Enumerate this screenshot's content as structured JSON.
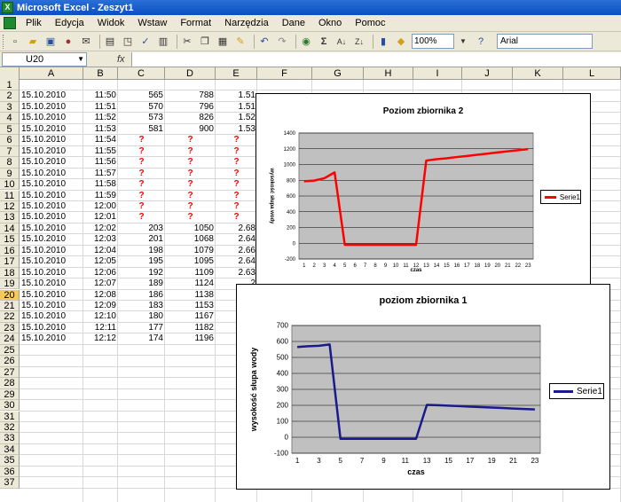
{
  "window": {
    "title": "Microsoft Excel - Zeszyt1"
  },
  "menu": [
    "Plik",
    "Edycja",
    "Widok",
    "Wstaw",
    "Format",
    "Narzędzia",
    "Dane",
    "Okno",
    "Pomoc"
  ],
  "toolbar": {
    "zoom": "100%",
    "font": "Arial",
    "icons": [
      "new-icon",
      "open-icon",
      "save-icon",
      "permission-icon",
      "email-icon",
      "print-icon",
      "print-preview-icon",
      "spelling-icon",
      "research-icon",
      "cut-icon",
      "copy-icon",
      "paste-icon",
      "format-painter-icon",
      "undo-icon",
      "redo-icon",
      "hyperlink-icon",
      "autosum-icon",
      "sort-asc-icon",
      "sort-desc-icon",
      "chart-wizard-icon",
      "drawing-icon",
      "help-icon"
    ]
  },
  "formula_bar": {
    "name_box": "U20",
    "fx": "fx"
  },
  "grid": {
    "columns": [
      "A",
      "B",
      "C",
      "D",
      "E",
      "F",
      "G",
      "H",
      "I",
      "J",
      "K",
      "L"
    ],
    "rows": [
      "1",
      "2",
      "3",
      "4",
      "5",
      "6",
      "7",
      "8",
      "9",
      "10",
      "11",
      "12",
      "13",
      "14",
      "15",
      "16",
      "17",
      "18",
      "19",
      "20",
      "21",
      "22",
      "23",
      "24",
      "25",
      "26",
      "27",
      "28",
      "29",
      "30",
      "31",
      "32",
      "33",
      "34",
      "35",
      "36",
      "37"
    ],
    "selected_row": "20",
    "data": [
      [
        "15.10.2010",
        "11:50",
        "565",
        "788",
        "1.51"
      ],
      [
        "15.10.2010",
        "11:51",
        "570",
        "796",
        "1.51"
      ],
      [
        "15.10.2010",
        "11:52",
        "573",
        "826",
        "1.52"
      ],
      [
        "15.10.2010",
        "11:53",
        "581",
        "900",
        "1.53"
      ],
      [
        "15.10.2010",
        "11:54",
        "?",
        "?",
        "?"
      ],
      [
        "15.10.2010",
        "11:55",
        "?",
        "?",
        "?"
      ],
      [
        "15.10.2010",
        "11:56",
        "?",
        "?",
        "?"
      ],
      [
        "15.10.2010",
        "11:57",
        "?",
        "?",
        "?"
      ],
      [
        "15.10.2010",
        "11:58",
        "?",
        "?",
        "?"
      ],
      [
        "15.10.2010",
        "11:59",
        "?",
        "?",
        "?"
      ],
      [
        "15.10.2010",
        "12:00",
        "?",
        "?",
        "?"
      ],
      [
        "15.10.2010",
        "12:01",
        "?",
        "?",
        "?"
      ],
      [
        "15.10.2010",
        "12:02",
        "203",
        "1050",
        "2.68"
      ],
      [
        "15.10.2010",
        "12:03",
        "201",
        "1068",
        "2.64"
      ],
      [
        "15.10.2010",
        "12:04",
        "198",
        "1079",
        "2.66"
      ],
      [
        "15.10.2010",
        "12:05",
        "195",
        "1095",
        "2.64"
      ],
      [
        "15.10.2010",
        "12:06",
        "192",
        "1109",
        "2.63"
      ],
      [
        "15.10.2010",
        "12:07",
        "189",
        "1124",
        "2"
      ],
      [
        "15.10.2010",
        "12:08",
        "186",
        "1138",
        "2"
      ],
      [
        "15.10.2010",
        "12:09",
        "183",
        "1153",
        "2"
      ],
      [
        "15.10.2010",
        "12:10",
        "180",
        "1167",
        "2"
      ],
      [
        "15.10.2010",
        "12:11",
        "177",
        "1182",
        "2"
      ],
      [
        "15.10.2010",
        "12:12",
        "174",
        "1196",
        "2"
      ]
    ]
  },
  "chart_data": [
    {
      "type": "line",
      "title": "Poziom zbiornika 2",
      "xlabel": "czas",
      "ylabel": "wysokość słupa wody",
      "ylim": [
        -200,
        1400
      ],
      "yticks": [
        -200,
        0,
        200,
        400,
        600,
        800,
        1000,
        1200,
        1400
      ],
      "x": [
        1,
        2,
        3,
        4,
        5,
        6,
        7,
        8,
        9,
        10,
        11,
        12,
        13,
        14,
        15,
        16,
        17,
        18,
        19,
        20,
        21,
        22,
        23
      ],
      "grid": true,
      "legend": "right",
      "series": [
        {
          "name": "Serie1",
          "color": "#ff0000",
          "values": [
            788,
            796,
            826,
            900,
            -20,
            -20,
            -20,
            -20,
            -20,
            -20,
            -20,
            -20,
            1050,
            1068,
            1079,
            1095,
            1109,
            1124,
            1138,
            1153,
            1167,
            1182,
            1196
          ]
        }
      ]
    },
    {
      "type": "line",
      "title": "poziom zbiornika 1",
      "xlabel": "czas",
      "ylabel": "wysokość słupa wody",
      "ylim": [
        -100,
        700
      ],
      "yticks": [
        -100,
        0,
        100,
        200,
        300,
        400,
        500,
        600,
        700
      ],
      "x": [
        1,
        2,
        3,
        4,
        5,
        6,
        7,
        8,
        9,
        10,
        11,
        12,
        13,
        14,
        15,
        16,
        17,
        18,
        19,
        20,
        21,
        22,
        23
      ],
      "xticks": [
        1,
        3,
        5,
        7,
        9,
        11,
        13,
        15,
        17,
        19,
        21,
        23
      ],
      "grid": true,
      "legend": "right",
      "series": [
        {
          "name": "Serie1",
          "color": "#1a1a8c",
          "values": [
            565,
            570,
            573,
            581,
            -10,
            -10,
            -10,
            -10,
            -10,
            -10,
            -10,
            -10,
            203,
            201,
            198,
            195,
            192,
            189,
            186,
            183,
            180,
            177,
            174
          ]
        }
      ]
    }
  ]
}
